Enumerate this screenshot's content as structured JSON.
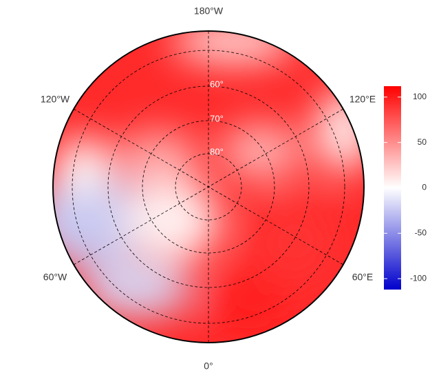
{
  "map": {
    "meridian_labels": [
      "180°W",
      "120°W",
      "120°E",
      "60°W",
      "60°E",
      "0°"
    ],
    "latitude_labels": [
      "60°",
      "70°",
      "80°"
    ],
    "colorbar": {
      "range": [
        -112,
        112
      ],
      "ticks": [
        100,
        50,
        0,
        -50,
        -100
      ],
      "colors": [
        "#0000cc",
        "#ffffff",
        "#ff0000"
      ]
    }
  }
}
